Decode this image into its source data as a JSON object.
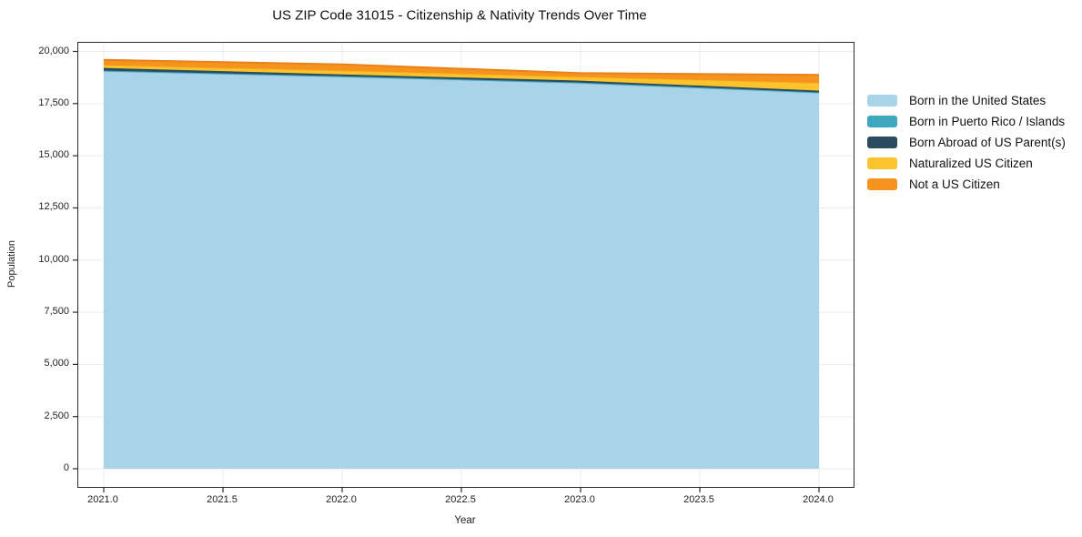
{
  "title": "US ZIP Code 31015 - Citizenship & Nativity Trends Over Time",
  "axes": {
    "xlabel": "Year",
    "ylabel": "Population",
    "x_ticks": [
      {
        "label": "2021.0",
        "value": 2021.0
      },
      {
        "label": "2021.5",
        "value": 2021.5
      },
      {
        "label": "2022.0",
        "value": 2022.0
      },
      {
        "label": "2022.5",
        "value": 2022.5
      },
      {
        "label": "2023.0",
        "value": 2023.0
      },
      {
        "label": "2023.5",
        "value": 2023.5
      },
      {
        "label": "2024.0",
        "value": 2024.0
      }
    ],
    "y_ticks": [
      {
        "label": "0",
        "value": 0
      },
      {
        "label": "2,500",
        "value": 2500
      },
      {
        "label": "5,000",
        "value": 5000
      },
      {
        "label": "7,500",
        "value": 7500
      },
      {
        "label": "10,000",
        "value": 10000
      },
      {
        "label": "12,500",
        "value": 12500
      },
      {
        "label": "15,000",
        "value": 15000
      },
      {
        "label": "17,500",
        "value": 17500
      },
      {
        "label": "20,000",
        "value": 20000
      }
    ]
  },
  "legend": {
    "position": "right-outside",
    "entries": [
      "Born in the United States",
      "Born in Puerto Rico / Islands",
      "Born Abroad of US Parent(s)",
      "Naturalized US Citizen",
      "Not a US Citizen"
    ]
  },
  "chart_data": {
    "type": "area",
    "stacked": true,
    "title": "US ZIP Code 31015 - Citizenship & Nativity Trends Over Time",
    "xlabel": "Year",
    "ylabel": "Population",
    "x": [
      2021,
      2022,
      2023,
      2024
    ],
    "series": [
      {
        "name": "Born in the United States",
        "color": "#a8d3e8",
        "edge": "#9ccadf",
        "values": [
          19050,
          18780,
          18480,
          18000
        ]
      },
      {
        "name": "Born in Puerto Rico / Islands",
        "color": "#3fa6c0",
        "edge": "#3fa6c0",
        "values": [
          30,
          30,
          30,
          40
        ]
      },
      {
        "name": "Born Abroad of US Parent(s)",
        "color": "#2b4c5e",
        "edge": "#2b4c5e",
        "values": [
          130,
          90,
          90,
          80
        ]
      },
      {
        "name": "Naturalized US Citizen",
        "color": "#fcc32d",
        "edge": "#f4b71f",
        "values": [
          130,
          180,
          180,
          370
        ]
      },
      {
        "name": "Not a US Citizen",
        "color": "#f6931e",
        "edge": "#e8821a",
        "values": [
          260,
          300,
          180,
          390
        ]
      }
    ],
    "totals": [
      19600,
      19380,
      18960,
      18880
    ],
    "xlim": [
      2020.89,
      2024.15
    ],
    "ylim": [
      -870,
      20400
    ],
    "grid": true,
    "grid_color": "#ebebeb",
    "legend_position": "right"
  }
}
